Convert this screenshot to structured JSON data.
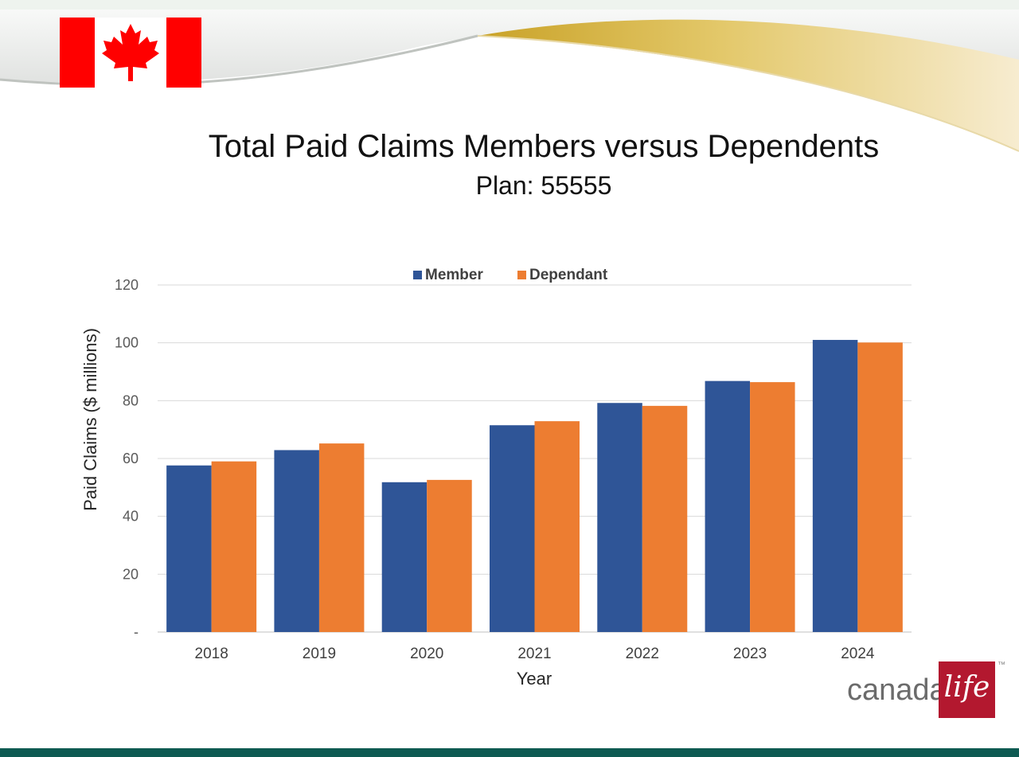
{
  "slide": {
    "title": "Total Paid Claims Members versus Dependents",
    "subtitle": "Plan: 55555",
    "logo_word": "canada",
    "logo_script": "life",
    "logo_tm": "™"
  },
  "colors": {
    "member": "#2f5597",
    "dependant": "#ed7d31",
    "flag_red": "#ff0000",
    "logo_red": "#b3182f",
    "gridline": "#d9d9d9"
  },
  "chart_data": {
    "type": "bar",
    "title": "Total Paid Claims Members versus Dependents",
    "subtitle": "Plan: 55555",
    "xlabel": "Year",
    "ylabel": "Paid Claims ($ millions)",
    "categories": [
      "2018",
      "2019",
      "2020",
      "2021",
      "2022",
      "2023",
      "2024"
    ],
    "series": [
      {
        "name": "Member",
        "values": [
          57.6,
          62.9,
          51.8,
          71.5,
          79.2,
          86.8,
          101.0
        ]
      },
      {
        "name": "Dependant",
        "values": [
          59.0,
          65.2,
          52.6,
          72.9,
          78.2,
          86.4,
          100.1
        ]
      }
    ],
    "ylim": [
      0,
      120
    ],
    "yticks": [
      0,
      20,
      40,
      60,
      80,
      100,
      120
    ],
    "ytick_labels": [
      "-",
      "20",
      "40",
      "60",
      "80",
      "100",
      "120"
    ],
    "legend_position": "top-center",
    "grid": true
  }
}
